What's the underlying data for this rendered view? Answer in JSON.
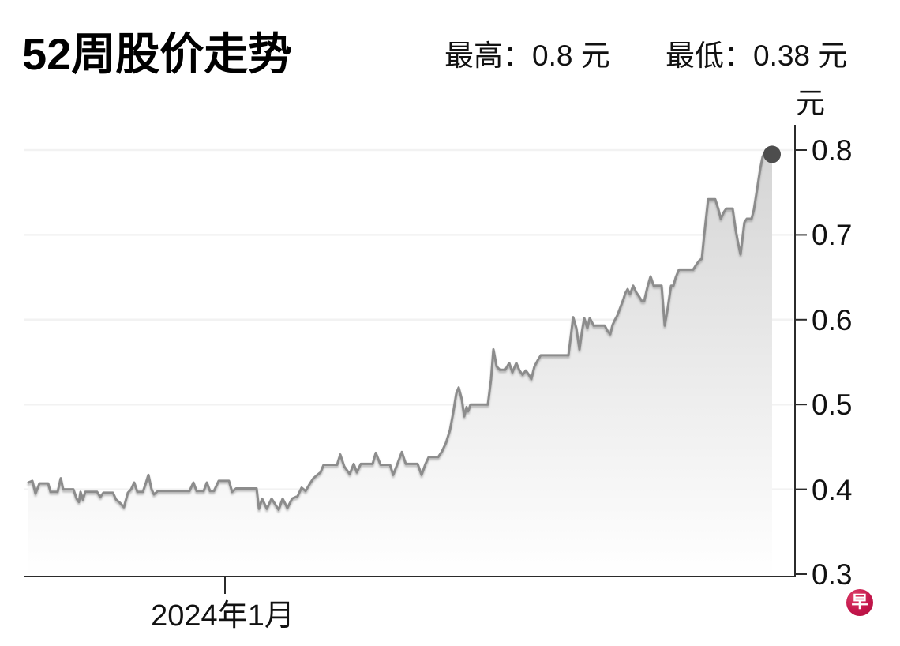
{
  "header": {
    "title": "52周股价走势",
    "high_label": "最高：0.8 元",
    "low_label": "最低：0.38 元"
  },
  "chart_data": {
    "type": "area",
    "title": "52周股价走势",
    "unit_label": "元",
    "ylabel": "元",
    "ylim": [
      0.3,
      0.8
    ],
    "y_ticks": [
      0.8,
      0.7,
      0.6,
      0.5,
      0.4,
      0.3
    ],
    "y_tick_labels": [
      "0.8",
      "0.7",
      "0.6",
      "0.5",
      "0.4",
      "0.3"
    ],
    "high": 0.8,
    "low": 0.38,
    "grid": true,
    "legend_position": "none",
    "x_axis": {
      "tick_label": "2024年1月",
      "tick_x": 285
    },
    "colors": {
      "line": "#8c8c8c",
      "end_dot": "#4d4d4d",
      "fill_top": "#d4d4d4",
      "fill_bottom": "#ffffff",
      "axis": "#2b2b2b",
      "gridline": "#f2f2f2",
      "logo": "#c4164c"
    },
    "points": [
      [
        36,
        0.408
      ],
      [
        41,
        0.41
      ],
      [
        45,
        0.395
      ],
      [
        50,
        0.407
      ],
      [
        61,
        0.407
      ],
      [
        64,
        0.397
      ],
      [
        73,
        0.397
      ],
      [
        77,
        0.413
      ],
      [
        80,
        0.4
      ],
      [
        93,
        0.4
      ],
      [
        97,
        0.389
      ],
      [
        100,
        0.385
      ],
      [
        102,
        0.397
      ],
      [
        105,
        0.388
      ],
      [
        108,
        0.397
      ],
      [
        123,
        0.397
      ],
      [
        127,
        0.391
      ],
      [
        131,
        0.396
      ],
      [
        143,
        0.396
      ],
      [
        147,
        0.388
      ],
      [
        152,
        0.384
      ],
      [
        157,
        0.379
      ],
      [
        162,
        0.396
      ],
      [
        166,
        0.4
      ],
      [
        170,
        0.408
      ],
      [
        174,
        0.397
      ],
      [
        181,
        0.397
      ],
      [
        185,
        0.408
      ],
      [
        188,
        0.417
      ],
      [
        192,
        0.4
      ],
      [
        195,
        0.394
      ],
      [
        200,
        0.398
      ],
      [
        240,
        0.398
      ],
      [
        245,
        0.408
      ],
      [
        249,
        0.398
      ],
      [
        258,
        0.398
      ],
      [
        262,
        0.408
      ],
      [
        266,
        0.398
      ],
      [
        271,
        0.398
      ],
      [
        277,
        0.41
      ],
      [
        290,
        0.41
      ],
      [
        294,
        0.397
      ],
      [
        299,
        0.401
      ],
      [
        325,
        0.401
      ],
      [
        328,
        0.377
      ],
      [
        332,
        0.389
      ],
      [
        338,
        0.377
      ],
      [
        344,
        0.389
      ],
      [
        353,
        0.376
      ],
      [
        358,
        0.389
      ],
      [
        364,
        0.378
      ],
      [
        370,
        0.389
      ],
      [
        377,
        0.392
      ],
      [
        382,
        0.402
      ],
      [
        387,
        0.398
      ],
      [
        392,
        0.406
      ],
      [
        397,
        0.413
      ],
      [
        402,
        0.417
      ],
      [
        406,
        0.42
      ],
      [
        410,
        0.429
      ],
      [
        427,
        0.429
      ],
      [
        431,
        0.441
      ],
      [
        436,
        0.427
      ],
      [
        443,
        0.418
      ],
      [
        448,
        0.43
      ],
      [
        452,
        0.42
      ],
      [
        457,
        0.43
      ],
      [
        472,
        0.43
      ],
      [
        476,
        0.443
      ],
      [
        482,
        0.429
      ],
      [
        494,
        0.429
      ],
      [
        498,
        0.417
      ],
      [
        503,
        0.429
      ],
      [
        509,
        0.444
      ],
      [
        514,
        0.43
      ],
      [
        529,
        0.43
      ],
      [
        534,
        0.417
      ],
      [
        539,
        0.43
      ],
      [
        543,
        0.438
      ],
      [
        555,
        0.438
      ],
      [
        560,
        0.445
      ],
      [
        565,
        0.455
      ],
      [
        570,
        0.47
      ],
      [
        574,
        0.49
      ],
      [
        578,
        0.513
      ],
      [
        581,
        0.52
      ],
      [
        585,
        0.506
      ],
      [
        588,
        0.486
      ],
      [
        591,
        0.497
      ],
      [
        593,
        0.492
      ],
      [
        596,
        0.5
      ],
      [
        618,
        0.5
      ],
      [
        622,
        0.53
      ],
      [
        625,
        0.565
      ],
      [
        629,
        0.545
      ],
      [
        633,
        0.541
      ],
      [
        640,
        0.541
      ],
      [
        645,
        0.549
      ],
      [
        649,
        0.538
      ],
      [
        654,
        0.549
      ],
      [
        658,
        0.54
      ],
      [
        662,
        0.535
      ],
      [
        666,
        0.54
      ],
      [
        670,
        0.535
      ],
      [
        673,
        0.53
      ],
      [
        677,
        0.545
      ],
      [
        681,
        0.552
      ],
      [
        685,
        0.558
      ],
      [
        720,
        0.558
      ],
      [
        723,
        0.58
      ],
      [
        726,
        0.603
      ],
      [
        730,
        0.59
      ],
      [
        734,
        0.565
      ],
      [
        737,
        0.585
      ],
      [
        740,
        0.602
      ],
      [
        744,
        0.59
      ],
      [
        747,
        0.602
      ],
      [
        752,
        0.593
      ],
      [
        766,
        0.593
      ],
      [
        770,
        0.586
      ],
      [
        773,
        0.583
      ],
      [
        776,
        0.594
      ],
      [
        779,
        0.6
      ],
      [
        782,
        0.605
      ],
      [
        786,
        0.615
      ],
      [
        790,
        0.625
      ],
      [
        792,
        0.631
      ],
      [
        795,
        0.636
      ],
      [
        798,
        0.63
      ],
      [
        802,
        0.64
      ],
      [
        806,
        0.632
      ],
      [
        809,
        0.628
      ],
      [
        813,
        0.622
      ],
      [
        816,
        0.622
      ],
      [
        820,
        0.638
      ],
      [
        824,
        0.651
      ],
      [
        828,
        0.64
      ],
      [
        838,
        0.64
      ],
      [
        842,
        0.593
      ],
      [
        846,
        0.615
      ],
      [
        850,
        0.64
      ],
      [
        853,
        0.64
      ],
      [
        856,
        0.65
      ],
      [
        860,
        0.659
      ],
      [
        878,
        0.659
      ],
      [
        882,
        0.665
      ],
      [
        886,
        0.67
      ],
      [
        889,
        0.672
      ],
      [
        892,
        0.7
      ],
      [
        895,
        0.725
      ],
      [
        897,
        0.742
      ],
      [
        906,
        0.742
      ],
      [
        910,
        0.73
      ],
      [
        913,
        0.719
      ],
      [
        917,
        0.727
      ],
      [
        920,
        0.731
      ],
      [
        928,
        0.731
      ],
      [
        932,
        0.705
      ],
      [
        935,
        0.69
      ],
      [
        938,
        0.677
      ],
      [
        941,
        0.7
      ],
      [
        943,
        0.715
      ],
      [
        946,
        0.719
      ],
      [
        952,
        0.719
      ],
      [
        955,
        0.73
      ],
      [
        957,
        0.742
      ],
      [
        960,
        0.76
      ],
      [
        963,
        0.778
      ],
      [
        966,
        0.792
      ],
      [
        970,
        0.8
      ],
      [
        974,
        0.8
      ],
      [
        978,
        0.795
      ]
    ]
  },
  "logo": {
    "char": "早"
  }
}
